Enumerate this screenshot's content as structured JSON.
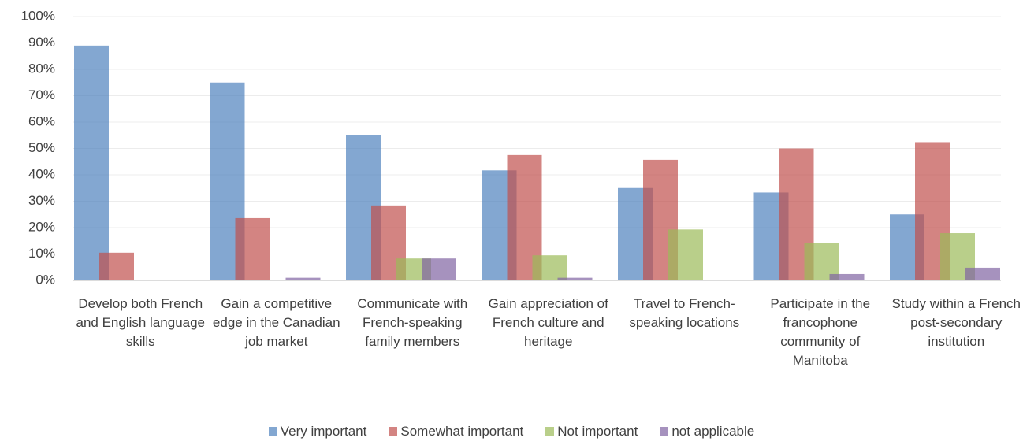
{
  "chart_data": {
    "type": "bar",
    "categories": [
      "Develop both French and English language skills",
      "Gain a competitive edge in the Canadian job market",
      "Communicate with French-speaking family members",
      "Gain appreciation of French culture and heritage",
      "Travel to French-speaking locations",
      "Participate in the francophone community of Manitoba",
      "Study within a French post-secondary institution"
    ],
    "series": [
      {
        "name": "Very important",
        "color": "#4f81bd",
        "values": [
          89,
          75,
          55,
          41.7,
          35,
          33.3,
          25
        ]
      },
      {
        "name": "Somewhat important",
        "color": "#c0504d",
        "values": [
          10.5,
          23.6,
          28.4,
          47.5,
          45.7,
          50,
          52.4
        ]
      },
      {
        "name": "Not important",
        "color": "#9bbb59",
        "values": [
          0,
          0,
          8.3,
          9.5,
          19.3,
          14.3,
          17.9
        ]
      },
      {
        "name": "not applicable",
        "color": "#8064a2",
        "values": [
          0,
          1,
          8.3,
          1,
          0,
          2.4,
          4.8
        ]
      }
    ],
    "ylim": [
      0,
      100
    ],
    "yticks": [
      {
        "value": 0,
        "label": "0%"
      },
      {
        "value": 10,
        "label": "10%"
      },
      {
        "value": 20,
        "label": "20%"
      },
      {
        "value": 30,
        "label": "30%"
      },
      {
        "value": 40,
        "label": "40%"
      },
      {
        "value": 50,
        "label": "50%"
      },
      {
        "value": 60,
        "label": "60%"
      },
      {
        "value": 70,
        "label": "70%"
      },
      {
        "value": 80,
        "label": "80%"
      },
      {
        "value": 90,
        "label": "90%"
      },
      {
        "value": 100,
        "label": "100%"
      }
    ],
    "grid": true
  }
}
